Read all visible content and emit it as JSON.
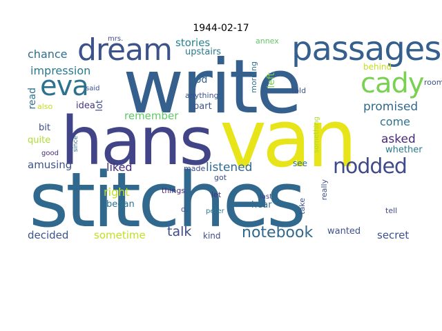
{
  "title": "1944-02-17",
  "words": [
    {
      "text": "stitches",
      "color": "#31688e"
    },
    {
      "text": "write",
      "color": "#35608d"
    },
    {
      "text": "van",
      "color": "#e7e419"
    },
    {
      "text": "hans",
      "color": "#414487"
    },
    {
      "text": "passages",
      "color": "#355f8d"
    },
    {
      "text": "dream",
      "color": "#3b528b"
    },
    {
      "text": "eva",
      "color": "#2c728e"
    },
    {
      "text": "cady",
      "color": "#7ad151"
    },
    {
      "text": "nodded",
      "color": "#3e4a89"
    },
    {
      "text": "chance",
      "color": "#2f6c8e"
    },
    {
      "text": "impression",
      "color": "#2a788e"
    },
    {
      "text": "stories",
      "color": "#26828e"
    },
    {
      "text": "upstairs",
      "color": "#2a788e"
    },
    {
      "text": "god",
      "color": "#33638d"
    },
    {
      "text": "anything",
      "color": "#3b528b"
    },
    {
      "text": "part",
      "color": "#3b528b"
    },
    {
      "text": "promised",
      "color": "#31688e"
    },
    {
      "text": "come",
      "color": "#2c728e"
    },
    {
      "text": "asked",
      "color": "#482878"
    },
    {
      "text": "remember",
      "color": "#5ec962"
    },
    {
      "text": "liked",
      "color": "#472c7a"
    },
    {
      "text": "listened",
      "color": "#31688e"
    },
    {
      "text": "amusing",
      "color": "#3b528b"
    },
    {
      "text": "read",
      "color": "#2c728e"
    },
    {
      "text": "lot",
      "color": "#3e4a89"
    },
    {
      "text": "idea",
      "color": "#46337f"
    },
    {
      "text": "bit",
      "color": "#3e4a89"
    },
    {
      "text": "quite",
      "color": "#addc30"
    },
    {
      "text": "also",
      "color": "#c2df23"
    },
    {
      "text": "said",
      "color": "#3b528b"
    },
    {
      "text": "good",
      "color": "#482878"
    },
    {
      "text": "since",
      "color": "#2c728e"
    },
    {
      "text": "mrs.",
      "color": "#3e4a89"
    },
    {
      "text": "annex",
      "color": "#5ec962"
    },
    {
      "text": "morning",
      "color": "#2c728e"
    },
    {
      "text": "left",
      "color": "#7ad151"
    },
    {
      "text": "told",
      "color": "#3b528b"
    },
    {
      "text": "behind",
      "color": "#c2df23"
    },
    {
      "text": "room",
      "color": "#3b528b"
    },
    {
      "text": "whether",
      "color": "#2a788e"
    },
    {
      "text": "see",
      "color": "#2c728e"
    },
    {
      "text": "something",
      "color": "#addc30"
    },
    {
      "text": "right",
      "color": "#c2df23"
    },
    {
      "text": "made",
      "color": "#3e4a89"
    },
    {
      "text": "began",
      "color": "#2c728e"
    },
    {
      "text": "things",
      "color": "#472c7a"
    },
    {
      "text": "d.",
      "color": "#3e4a89"
    },
    {
      "text": "got",
      "color": "#3e4a89"
    },
    {
      "text": "let",
      "color": "#46337f"
    },
    {
      "text": "peter",
      "color": "#2a788e"
    },
    {
      "text": "last",
      "color": "#3e4a89"
    },
    {
      "text": "take",
      "color": "#3b528b"
    },
    {
      "text": "really",
      "color": "#3b528b"
    },
    {
      "text": "tell",
      "color": "#3e4a89"
    },
    {
      "text": "hear",
      "color": "#2f6c8e"
    },
    {
      "text": "talk",
      "color": "#3e4a89"
    },
    {
      "text": "sometime",
      "color": "#c2df23"
    },
    {
      "text": "decided",
      "color": "#3b528b"
    },
    {
      "text": "kind",
      "color": "#3e4a89"
    },
    {
      "text": "notebook",
      "color": "#31688e"
    },
    {
      "text": "wanted",
      "color": "#3b528b"
    },
    {
      "text": "secret",
      "color": "#3b528b"
    }
  ]
}
